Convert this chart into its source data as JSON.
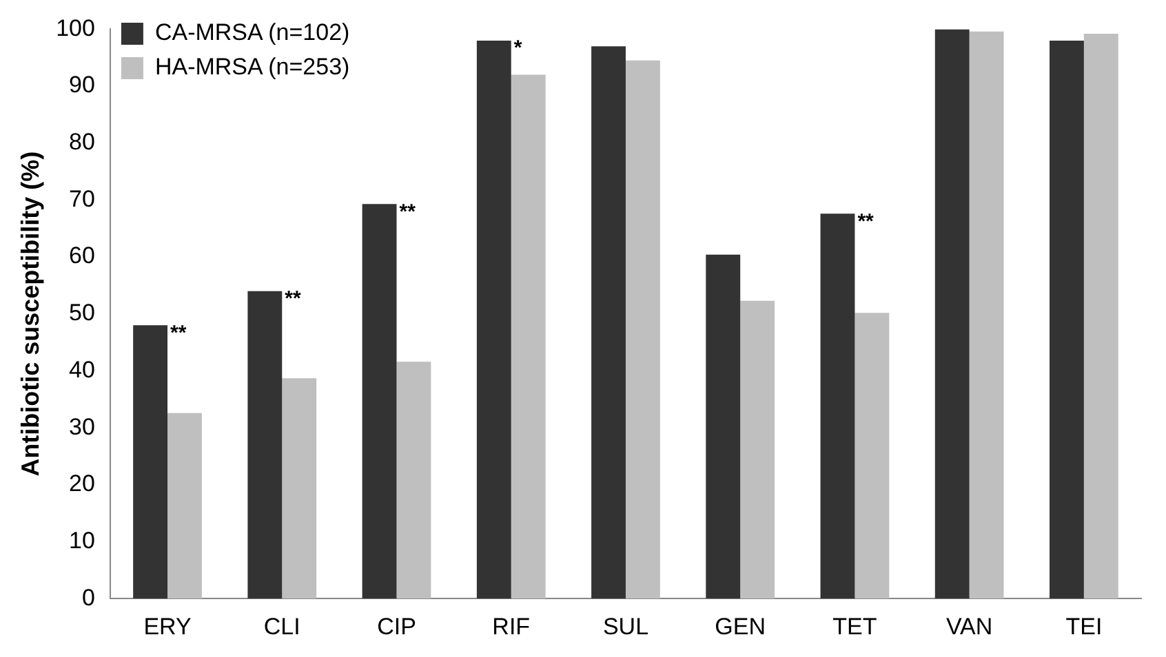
{
  "chart_data": {
    "type": "bar",
    "ylabel": "Antibiotic susceptibility (%)",
    "categories": [
      "ERY",
      "CLI",
      "CIP",
      "RIF",
      "SUL",
      "GEN",
      "TET",
      "VAN",
      "TEI"
    ],
    "series": [
      {
        "name": "CA-MRSA (n=102)",
        "color": "#333333",
        "values": [
          48,
          54,
          69.3,
          98,
          97,
          60.4,
          67.6,
          100,
          98
        ]
      },
      {
        "name": "HA-MRSA (n=253)",
        "color": "#bfbfbf",
        "values": [
          32.6,
          38.7,
          41.6,
          92,
          94.5,
          52.3,
          50.2,
          99.6,
          99.2
        ]
      }
    ],
    "ylim": [
      0,
      100
    ],
    "yticks": [
      0,
      10,
      20,
      30,
      40,
      50,
      60,
      70,
      80,
      90,
      100
    ],
    "grid": false,
    "legend": "top left",
    "annotations": [
      {
        "text": "**",
        "x": "ERY",
        "y": 48
      },
      {
        "text": "**",
        "x": "CLI",
        "y": 54
      },
      {
        "text": "**",
        "x": "CIP",
        "y": 69.3
      },
      {
        "text": "*",
        "x": "RIF",
        "y": 98
      },
      {
        "text": "**",
        "x": "TET",
        "y": 67.6
      }
    ]
  }
}
